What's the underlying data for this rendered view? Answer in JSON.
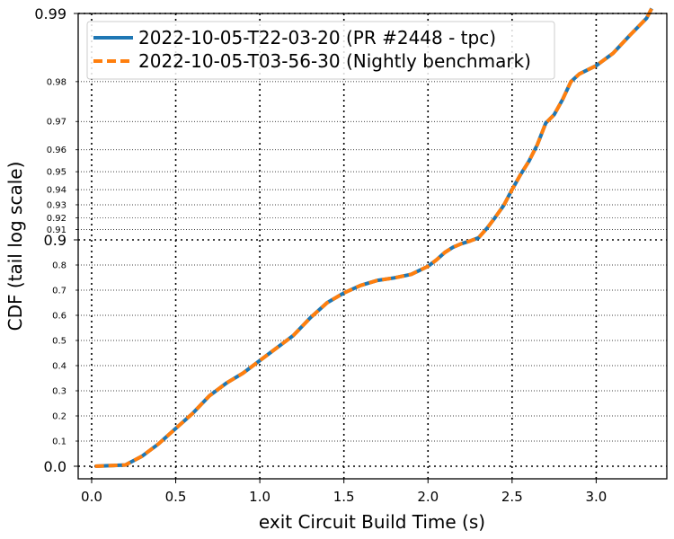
{
  "chart_data": {
    "type": "line",
    "title": "",
    "xlabel": "exit Circuit Build Time (s)",
    "ylabel": "CDF (tail log scale)",
    "xlim": [
      -0.08,
      3.42
    ],
    "x_ticks": [
      {
        "value": 0.0,
        "label": "0.0"
      },
      {
        "value": 0.5,
        "label": "0.5"
      },
      {
        "value": 1.0,
        "label": "1.0"
      },
      {
        "value": 1.5,
        "label": "1.5"
      },
      {
        "value": 2.0,
        "label": "2.0"
      },
      {
        "value": 2.5,
        "label": "2.5"
      },
      {
        "value": 3.0,
        "label": "3.0"
      }
    ],
    "y_scale": "tail-log",
    "y_major_ticks": [
      {
        "value": 0.0,
        "label": "0.0"
      },
      {
        "value": 0.9,
        "label": "0.9"
      },
      {
        "value": 0.99,
        "label": "0.99"
      }
    ],
    "y_minor_ticks": [
      {
        "value": 0.1,
        "label": "0.1"
      },
      {
        "value": 0.2,
        "label": "0.2"
      },
      {
        "value": 0.3,
        "label": "0.3"
      },
      {
        "value": 0.4,
        "label": "0.4"
      },
      {
        "value": 0.5,
        "label": "0.5"
      },
      {
        "value": 0.6,
        "label": "0.6"
      },
      {
        "value": 0.7,
        "label": "0.7"
      },
      {
        "value": 0.8,
        "label": "0.8"
      },
      {
        "value": 0.91,
        "label": "0.91"
      },
      {
        "value": 0.92,
        "label": "0.92"
      },
      {
        "value": 0.93,
        "label": "0.93"
      },
      {
        "value": 0.94,
        "label": "0.94"
      },
      {
        "value": 0.95,
        "label": "0.95"
      },
      {
        "value": 0.96,
        "label": "0.96"
      },
      {
        "value": 0.97,
        "label": "0.97"
      },
      {
        "value": 0.98,
        "label": "0.98"
      }
    ],
    "grid": true,
    "legend_position": "top-left",
    "series": [
      {
        "name": "2022-10-05-T22-03-20 (PR #2448 - tpc)",
        "color": "#1f77b4",
        "style": "solid",
        "x": [
          0.02,
          0.1,
          0.2,
          0.3,
          0.4,
          0.5,
          0.6,
          0.7,
          0.8,
          0.9,
          1.0,
          1.1,
          1.2,
          1.3,
          1.4,
          1.5,
          1.6,
          1.7,
          1.8,
          1.9,
          2.0,
          2.05,
          2.1,
          2.15,
          2.2,
          2.25,
          2.3,
          2.35,
          2.4,
          2.45,
          2.5,
          2.55,
          2.6,
          2.65,
          2.7,
          2.75,
          2.8,
          2.85,
          2.9,
          3.0,
          3.1,
          3.2,
          3.3,
          3.33
        ],
        "y": [
          0.0,
          0.002,
          0.005,
          0.04,
          0.09,
          0.15,
          0.21,
          0.28,
          0.33,
          0.37,
          0.42,
          0.47,
          0.52,
          0.59,
          0.65,
          0.689,
          0.719,
          0.739,
          0.749,
          0.763,
          0.795,
          0.82,
          0.85,
          0.871,
          0.885,
          0.8955,
          0.902,
          0.911,
          0.9205,
          0.9295,
          0.94,
          0.9485,
          0.955,
          0.962,
          0.9695,
          0.972,
          0.976,
          0.98,
          0.9815,
          0.983,
          0.985,
          0.9875,
          0.9895,
          0.9905
        ]
      },
      {
        "name": "2022-10-05-T03-56-30 (Nightly benchmark)",
        "color": "#ff7f0e",
        "style": "dashed",
        "x": [
          0.02,
          0.1,
          0.2,
          0.3,
          0.4,
          0.5,
          0.6,
          0.7,
          0.8,
          0.9,
          1.0,
          1.1,
          1.2,
          1.3,
          1.4,
          1.5,
          1.6,
          1.7,
          1.8,
          1.9,
          2.0,
          2.05,
          2.1,
          2.15,
          2.2,
          2.25,
          2.3,
          2.35,
          2.4,
          2.45,
          2.5,
          2.55,
          2.6,
          2.65,
          2.7,
          2.75,
          2.8,
          2.85,
          2.9,
          3.0,
          3.1,
          3.2,
          3.3,
          3.33
        ],
        "y": [
          0.0,
          0.002,
          0.005,
          0.04,
          0.09,
          0.15,
          0.21,
          0.28,
          0.33,
          0.37,
          0.42,
          0.47,
          0.52,
          0.59,
          0.65,
          0.689,
          0.719,
          0.739,
          0.749,
          0.763,
          0.795,
          0.82,
          0.85,
          0.871,
          0.885,
          0.8955,
          0.902,
          0.911,
          0.9205,
          0.9295,
          0.94,
          0.9485,
          0.955,
          0.962,
          0.9695,
          0.972,
          0.976,
          0.98,
          0.9815,
          0.983,
          0.985,
          0.9875,
          0.9895,
          0.9905
        ]
      }
    ]
  }
}
